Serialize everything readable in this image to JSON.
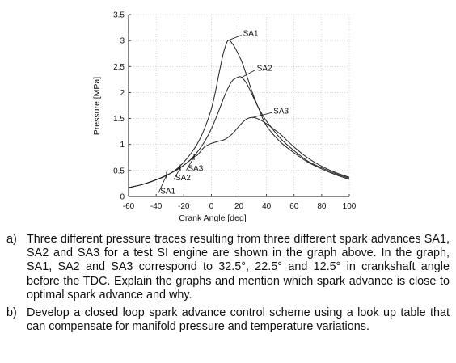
{
  "chart_data": {
    "type": "line",
    "xlabel": "Crank Angle [deg]",
    "ylabel": "Pressure [MPa]",
    "xlim": [
      -60,
      100
    ],
    "ylim": [
      0,
      3.5
    ],
    "xticks": [
      "-60",
      "-40",
      "-20",
      "0",
      "20",
      "40",
      "60",
      "80",
      "100"
    ],
    "yticks": [
      "0",
      "0.5",
      "1",
      "1.5",
      "2",
      "2.5",
      "3",
      "3.5"
    ],
    "grid": true,
    "series": [
      {
        "name": "SA1",
        "spark_angle": -32.5,
        "x": [
          -60,
          -50,
          -40,
          -35,
          -32.5,
          -30,
          -25,
          -20,
          -15,
          -10,
          -5,
          0,
          3,
          6,
          9,
          12,
          15,
          18,
          22,
          26,
          30,
          35,
          40,
          50,
          60,
          70,
          80,
          90,
          100
        ],
        "y": [
          0.17,
          0.23,
          0.32,
          0.37,
          0.41,
          0.44,
          0.53,
          0.66,
          0.82,
          1.02,
          1.3,
          1.68,
          2.02,
          2.42,
          2.78,
          3.0,
          2.95,
          2.82,
          2.6,
          2.3,
          1.98,
          1.65,
          1.36,
          1.05,
          0.84,
          0.66,
          0.53,
          0.42,
          0.33
        ]
      },
      {
        "name": "SA2",
        "spark_angle": -22.5,
        "x": [
          -60,
          -50,
          -40,
          -30,
          -22.5,
          -20,
          -15,
          -10,
          -5,
          0,
          5,
          10,
          15,
          20,
          22,
          25,
          28,
          32,
          36,
          40,
          50,
          60,
          70,
          80,
          90,
          100
        ],
        "y": [
          0.17,
          0.23,
          0.32,
          0.44,
          0.55,
          0.6,
          0.71,
          0.86,
          1.05,
          1.3,
          1.62,
          1.96,
          2.22,
          2.3,
          2.29,
          2.2,
          2.05,
          1.82,
          1.62,
          1.45,
          1.12,
          0.88,
          0.68,
          0.55,
          0.44,
          0.35
        ]
      },
      {
        "name": "SA3",
        "spark_angle": -12.5,
        "x": [
          -60,
          -50,
          -40,
          -30,
          -20,
          -12.5,
          -10,
          -5,
          0,
          5,
          10,
          15,
          20,
          25,
          30,
          35,
          40,
          45,
          50,
          60,
          70,
          80,
          90,
          100
        ],
        "y": [
          0.17,
          0.23,
          0.32,
          0.44,
          0.6,
          0.76,
          0.8,
          0.95,
          1.02,
          1.06,
          1.1,
          1.2,
          1.35,
          1.48,
          1.52,
          1.48,
          1.4,
          1.3,
          1.2,
          0.95,
          0.74,
          0.58,
          0.46,
          0.37
        ]
      }
    ],
    "annotations": [
      {
        "label": "SA1",
        "x": 12,
        "y": 3.0,
        "tx": 23,
        "ty": 3.15
      },
      {
        "label": "SA2",
        "x": 22,
        "y": 2.29,
        "tx": 33,
        "ty": 2.48
      },
      {
        "label": "SA3",
        "x": 30,
        "y": 1.52,
        "tx": 45,
        "ty": 1.66
      },
      {
        "label": "SA3",
        "x": -12.5,
        "y": 0.76,
        "tx": -17,
        "ty": 0.55
      },
      {
        "label": "SA2",
        "x": -22.5,
        "y": 0.55,
        "tx": -26,
        "ty": 0.37
      },
      {
        "label": "SA1",
        "x": -32.5,
        "y": 0.41,
        "tx": -37,
        "ty": 0.12
      }
    ]
  },
  "questions": [
    {
      "marker": "a)",
      "text": "Three different pressure traces resulting from three different spark advances SA1, SA2 and SA3 for a test SI engine are shown in the graph above. In the graph, SA1, SA2 and SA3 correspond to 32.5°, 22.5° and 12.5° in crankshaft angle before the TDC. Explain the graphs and mention which spark advance is close to optimal spark advance and why."
    },
    {
      "marker": "b)",
      "text": "Develop a closed loop spark advance control scheme using a look up table that can compensate for manifold pressure and temperature variations."
    }
  ]
}
